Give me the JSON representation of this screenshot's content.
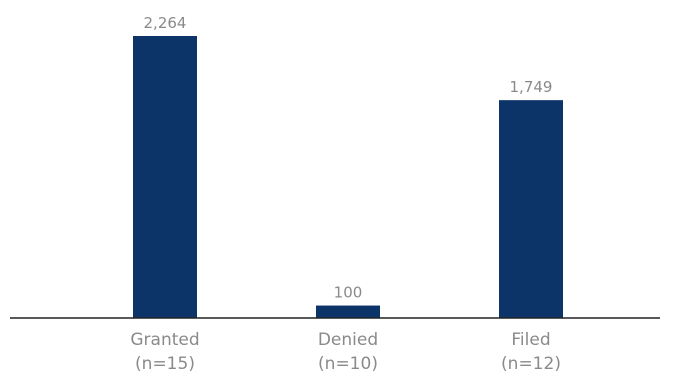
{
  "chart_data": {
    "type": "bar",
    "categories": [
      "Granted",
      "Denied",
      "Filed"
    ],
    "category_notes": [
      "(n=15)",
      "(n=10)",
      "(n=12)"
    ],
    "values": [
      2264,
      100,
      1749
    ],
    "value_labels": [
      "2,264",
      "100",
      "1,749"
    ],
    "title": "",
    "xlabel": "",
    "ylabel": "",
    "ylim": [
      0,
      2300
    ],
    "grid": false,
    "legend": "none",
    "bar_color": "#0d3468"
  }
}
